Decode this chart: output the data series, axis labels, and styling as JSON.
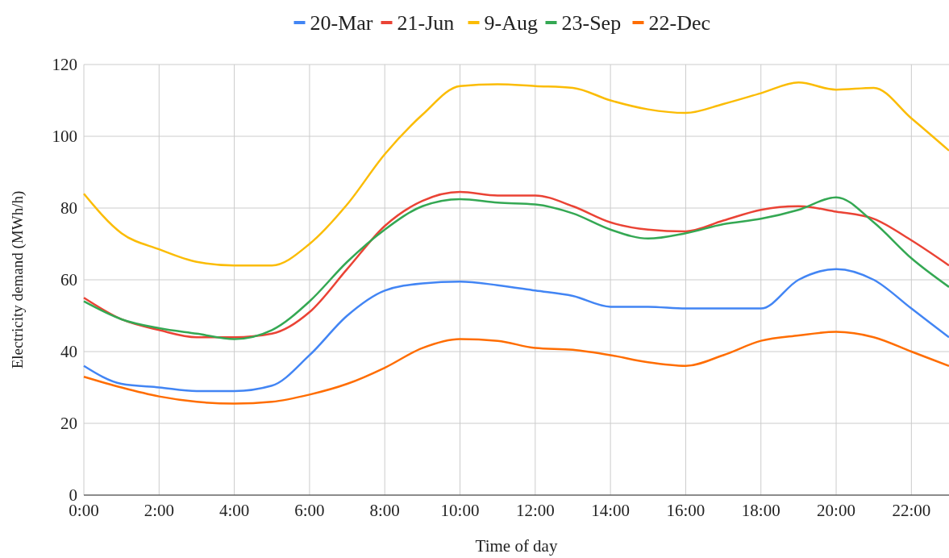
{
  "chart_data": {
    "type": "line",
    "xlabel": "Time of day",
    "ylabel": "Electricity demand (MWh/h)",
    "x": [
      0,
      1,
      2,
      3,
      4,
      5,
      6,
      7,
      8,
      9,
      10,
      11,
      12,
      13,
      14,
      15,
      16,
      17,
      18,
      19,
      20,
      21,
      22,
      23
    ],
    "xlim": [
      0,
      23
    ],
    "xticks": [
      {
        "value": 0,
        "label": "0:00"
      },
      {
        "value": 2,
        "label": "2:00"
      },
      {
        "value": 4,
        "label": "4:00"
      },
      {
        "value": 6,
        "label": "6:00"
      },
      {
        "value": 8,
        "label": "8:00"
      },
      {
        "value": 10,
        "label": "10:00"
      },
      {
        "value": 12,
        "label": "12:00"
      },
      {
        "value": 14,
        "label": "14:00"
      },
      {
        "value": 16,
        "label": "16:00"
      },
      {
        "value": 18,
        "label": "18:00"
      },
      {
        "value": 20,
        "label": "20:00"
      },
      {
        "value": 22,
        "label": "22:00"
      }
    ],
    "ylim": [
      0,
      120
    ],
    "yticks": [
      0,
      20,
      40,
      60,
      80,
      100,
      120
    ],
    "grid": true,
    "legend": "top",
    "marker": "none",
    "line_style": "solid",
    "series": [
      {
        "name": "20-Mar",
        "color": "#4285f4",
        "values": [
          36,
          31,
          30,
          29,
          29,
          30.5,
          39,
          50,
          57,
          59,
          59.5,
          58.5,
          57,
          55.5,
          52.5,
          52.5,
          52,
          52,
          52,
          60,
          63,
          60,
          52,
          44
        ]
      },
      {
        "name": "21-Jun",
        "color": "#ea4335",
        "values": [
          55,
          49,
          46,
          44,
          44,
          45,
          51,
          63,
          75,
          82,
          84.5,
          83.5,
          83.5,
          80.5,
          76,
          74,
          73.5,
          76.5,
          79.5,
          80.5,
          79,
          77,
          71,
          64
        ]
      },
      {
        "name": "9-Aug",
        "color": "#fbbc04",
        "values": [
          84,
          73,
          68.5,
          65,
          64,
          64,
          70,
          81,
          95,
          106,
          114,
          114.5,
          114,
          113.5,
          110,
          107.5,
          106.5,
          109,
          112,
          115,
          113,
          113.5,
          105,
          96
        ]
      },
      {
        "name": "23-Sep",
        "color": "#34a853",
        "values": [
          54,
          49,
          46.5,
          45,
          43.5,
          46,
          54,
          65,
          74,
          80.5,
          82.5,
          81.5,
          81,
          78.5,
          74,
          71.5,
          73,
          75.5,
          77,
          79.5,
          83,
          76,
          66,
          58
        ]
      },
      {
        "name": "22-Dec",
        "color": "#ff6d01",
        "values": [
          33,
          30,
          27.5,
          26,
          25.5,
          26,
          28,
          31,
          35.5,
          41,
          43.5,
          43,
          41,
          40.5,
          39,
          37,
          36,
          39,
          43,
          44.5,
          45.5,
          44,
          40,
          36
        ]
      }
    ]
  }
}
